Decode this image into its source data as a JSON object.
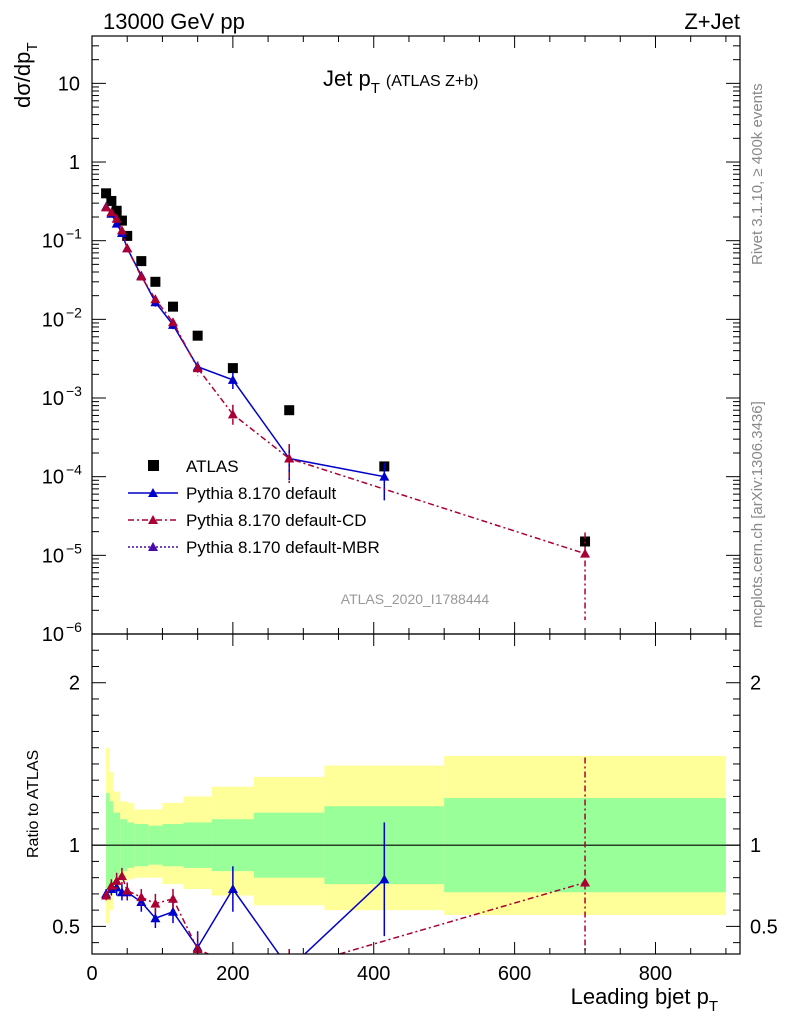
{
  "header": {
    "left": "13000 GeV pp",
    "right": "Z+Jet"
  },
  "side_labels": {
    "rivet": "Rivet 3.1.10, ≥ 400k events",
    "mcplots": "mcplots.cern.ch [arXiv:1306.3436]"
  },
  "chart_data": [
    {
      "type": "scatter",
      "title": "Jet p",
      "title_sub": "T",
      "title_note": "(ATLAS Z+b)",
      "ylabel": "dσ/dp",
      "ylabel_sub": "T",
      "yscale": "log",
      "xlim": [
        0,
        920
      ],
      "ylim": [
        1e-06,
        40
      ],
      "yticks": [
        {
          "v": 10,
          "label": "10"
        },
        {
          "v": 1,
          "label": "1"
        },
        {
          "v": 0.1,
          "label": "10",
          "exp": "−1"
        },
        {
          "v": 0.01,
          "label": "10",
          "exp": "−2"
        },
        {
          "v": 0.001,
          "label": "10",
          "exp": "−3"
        },
        {
          "v": 0.0001,
          "label": "10",
          "exp": "−4"
        },
        {
          "v": 1e-05,
          "label": "10",
          "exp": "−5"
        },
        {
          "v": 1e-06,
          "label": "10",
          "exp": "−6"
        }
      ],
      "watermark": "ATLAS_2020_I1788444",
      "legend_position": "bottom-left",
      "series": [
        {
          "name": "ATLAS",
          "style": "data",
          "color": "#000000",
          "x": [
            20,
            27.5,
            35,
            42.5,
            50,
            70,
            90,
            115,
            150,
            200,
            280,
            415,
            700
          ],
          "y": [
            0.4,
            0.32,
            0.24,
            0.18,
            0.115,
            0.055,
            0.03,
            0.0145,
            0.0062,
            0.0024,
            0.0007,
            0.000135,
            1.5e-05
          ]
        },
        {
          "name": "Pythia 8.170 default",
          "style": "solid",
          "color": "#0000cc",
          "x": [
            20,
            27.5,
            35,
            42.5,
            50,
            70,
            90,
            115,
            150,
            200,
            280,
            415
          ],
          "y": [
            0.27,
            0.22,
            0.165,
            0.125,
            0.08,
            0.036,
            0.0165,
            0.0085,
            0.0025,
            0.0017,
            0.00017,
            0.0001
          ],
          "err": [
            0.02,
            0.02,
            0.015,
            0.012,
            0.008,
            0.004,
            0.002,
            0.001,
            0.0004,
            0.0004,
            8e-05,
            5e-05
          ]
        },
        {
          "name": "Pythia 8.170 default-CD",
          "style": "dashdot",
          "color": "#aa0033",
          "x": [
            20,
            27.5,
            35,
            42.5,
            50,
            70,
            90,
            115,
            150,
            200,
            280,
            700
          ],
          "y": [
            0.265,
            0.23,
            0.19,
            0.135,
            0.08,
            0.035,
            0.018,
            0.0092,
            0.0024,
            0.00062,
            0.00017,
            1.05e-05
          ],
          "err": [
            0.02,
            0.02,
            0.018,
            0.012,
            0.008,
            0.004,
            0.002,
            0.001,
            0.0005,
            0.0002,
            9e-05,
            9e-06
          ]
        },
        {
          "name": "Pythia 8.170 default-MBR",
          "style": "dotted",
          "color": "#4b0aa8",
          "x": [],
          "y": []
        }
      ]
    },
    {
      "type": "scatter",
      "ylabel": "Ratio to ATLAS",
      "xlabel": "Leading bjet p",
      "xlabel_sub": "T",
      "xlim": [
        0,
        920
      ],
      "ylim": [
        0.33,
        2.3
      ],
      "xticks": [
        0,
        200,
        400,
        600,
        800
      ],
      "yticks": [
        0.5,
        1,
        2
      ],
      "bands": {
        "edges": [
          20,
          25,
          30,
          40,
          50,
          60,
          80,
          100,
          130,
          170,
          230,
          330,
          500,
          900
        ],
        "stat_upper": [
          1.32,
          1.27,
          1.2,
          1.16,
          1.14,
          1.13,
          1.12,
          1.13,
          1.14,
          1.16,
          1.2,
          1.24,
          1.29
        ],
        "stat_lower": [
          0.68,
          0.73,
          0.8,
          0.84,
          0.86,
          0.87,
          0.88,
          0.87,
          0.86,
          0.84,
          0.8,
          0.76,
          0.71
        ],
        "total_upper": [
          1.6,
          1.45,
          1.33,
          1.27,
          1.26,
          1.22,
          1.22,
          1.26,
          1.3,
          1.36,
          1.42,
          1.49,
          1.55
        ],
        "total_lower": [
          0.52,
          0.6,
          0.72,
          0.78,
          0.79,
          0.8,
          0.8,
          0.76,
          0.73,
          0.69,
          0.63,
          0.6,
          0.57
        ]
      },
      "series": [
        {
          "name": "Pythia 8.170 default",
          "style": "solid",
          "color": "#0000cc",
          "x": [
            20,
            27.5,
            35,
            42.5,
            50,
            70,
            90,
            115,
            150,
            200,
            280,
            415
          ],
          "y": [
            0.7,
            0.73,
            0.74,
            0.71,
            0.71,
            0.65,
            0.55,
            0.59,
            0.37,
            0.73,
            0.24,
            0.79
          ],
          "err": [
            0.03,
            0.04,
            0.05,
            0.05,
            0.05,
            0.06,
            0.06,
            0.07,
            0.1,
            0.14,
            0.12,
            0.35
          ]
        },
        {
          "name": "Pythia 8.170 default-CD",
          "style": "dashdot",
          "color": "#aa0033",
          "x": [
            20,
            27.5,
            35,
            42.5,
            50,
            70,
            90,
            115,
            150,
            200,
            280,
            700
          ],
          "y": [
            0.69,
            0.75,
            0.78,
            0.81,
            0.72,
            0.68,
            0.64,
            0.67,
            0.36,
            0.26,
            0.24,
            0.77
          ],
          "err": [
            0.03,
            0.04,
            0.05,
            0.05,
            0.05,
            0.05,
            0.06,
            0.06,
            0.1,
            0.08,
            0.12,
            0.77
          ]
        }
      ]
    }
  ]
}
